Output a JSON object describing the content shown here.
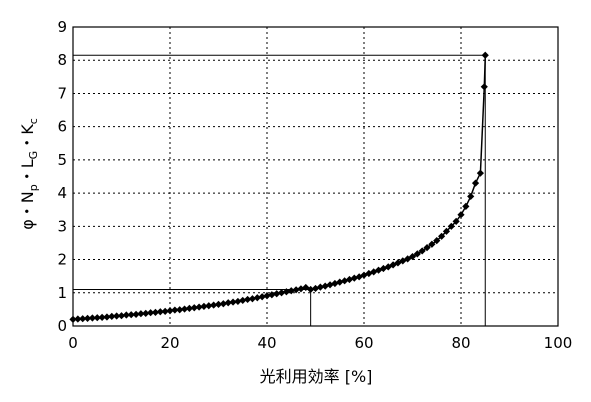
{
  "chart_data": {
    "type": "line",
    "title": "",
    "xlabel": "光利用効率 [%]",
    "ylabel": "φ・Np・LG・Kc",
    "ylabel_parts": [
      {
        "text": "φ・N",
        "sub": false
      },
      {
        "text": "p",
        "sub": true
      },
      {
        "text": "・L",
        "sub": false
      },
      {
        "text": "G",
        "sub": true
      },
      {
        "text": "・K",
        "sub": false
      },
      {
        "text": "c",
        "sub": true
      }
    ],
    "xlim": [
      0,
      100
    ],
    "ylim": [
      0,
      9
    ],
    "xticks": [
      0,
      20,
      40,
      60,
      80,
      100
    ],
    "yticks": [
      0,
      1,
      2,
      3,
      4,
      5,
      6,
      7,
      8,
      9
    ],
    "grid": true,
    "legend": "none",
    "colors": {
      "series": "#000000",
      "grid": "#000000",
      "reference": "#000000"
    },
    "reference_lines": [
      {
        "x": 49,
        "y": 1.1
      },
      {
        "x": 85,
        "y": 8.15
      }
    ],
    "series": [
      {
        "marker": "diamond",
        "x": [
          0,
          1,
          2,
          3,
          4,
          5,
          6,
          7,
          8,
          9,
          10,
          11,
          12,
          13,
          14,
          15,
          16,
          17,
          18,
          19,
          20,
          21,
          22,
          23,
          24,
          25,
          26,
          27,
          28,
          29,
          30,
          31,
          32,
          33,
          34,
          35,
          36,
          37,
          38,
          39,
          40,
          41,
          42,
          43,
          44,
          45,
          46,
          47,
          48,
          49,
          50,
          51,
          52,
          53,
          54,
          55,
          56,
          57,
          58,
          59,
          60,
          61,
          62,
          63,
          64,
          65,
          66,
          67,
          68,
          69,
          70,
          71,
          72,
          73,
          74,
          75,
          76,
          77,
          78,
          79,
          80,
          81,
          82,
          83,
          84,
          84.8,
          85
        ],
        "y": [
          0.2,
          0.21,
          0.22,
          0.23,
          0.24,
          0.25,
          0.26,
          0.27,
          0.29,
          0.3,
          0.31,
          0.33,
          0.34,
          0.35,
          0.37,
          0.38,
          0.4,
          0.41,
          0.43,
          0.44,
          0.46,
          0.48,
          0.49,
          0.51,
          0.53,
          0.55,
          0.57,
          0.59,
          0.61,
          0.63,
          0.65,
          0.67,
          0.7,
          0.72,
          0.74,
          0.77,
          0.8,
          0.82,
          0.85,
          0.88,
          0.91,
          0.94,
          0.97,
          1.0,
          1.03,
          1.06,
          1.09,
          1.12,
          1.16,
          1.1,
          1.13,
          1.17,
          1.2,
          1.24,
          1.28,
          1.32,
          1.36,
          1.4,
          1.44,
          1.48,
          1.53,
          1.58,
          1.63,
          1.68,
          1.73,
          1.78,
          1.84,
          1.9,
          1.96,
          2.02,
          2.09,
          2.17,
          2.26,
          2.36,
          2.46,
          2.57,
          2.7,
          2.85,
          3.0,
          3.15,
          3.35,
          3.6,
          3.9,
          4.3,
          4.6,
          7.2,
          8.15
        ]
      }
    ]
  }
}
